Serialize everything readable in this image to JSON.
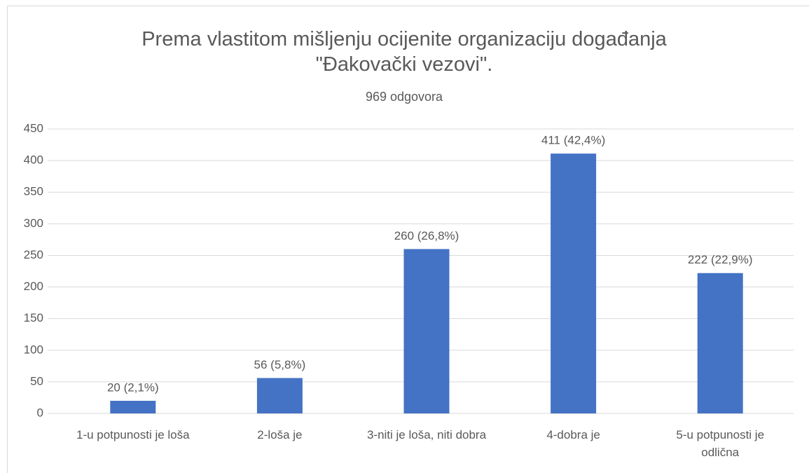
{
  "chart_data": {
    "type": "bar",
    "title": "Prema vlastitom mišljenju ocijenite organizaciju događanja \"Đakovački vezovi\".",
    "subtitle": "969 odgovora",
    "categories": [
      "1-u potpunosti je loša",
      "2-loša je",
      "3-niti je loša, niti dobra",
      "4-dobra je",
      "5-u potpunosti je odlična"
    ],
    "values": [
      20,
      56,
      260,
      411,
      222
    ],
    "value_labels": [
      "20 (2,1%)",
      "56 (5,8%)",
      "260 (26,8%)",
      "411 (42,4%)",
      "222 (22,9%)"
    ],
    "color": "#4472c4",
    "ylim": [
      0,
      450
    ],
    "yticks": [
      0,
      50,
      100,
      150,
      200,
      250,
      300,
      350,
      400,
      450
    ],
    "grid": true
  }
}
